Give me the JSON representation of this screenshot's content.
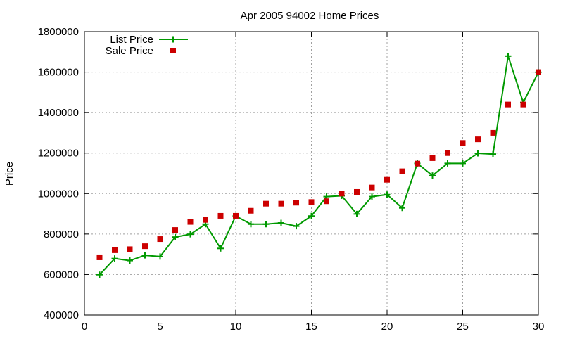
{
  "chart_data": {
    "type": "line",
    "title": "Apr 2005 94002 Home Prices",
    "xlabel": "",
    "ylabel": "Price",
    "xlim": [
      0,
      30
    ],
    "ylim": [
      400000,
      1800000
    ],
    "x_ticks": [
      0,
      5,
      10,
      15,
      20,
      25,
      30
    ],
    "y_ticks": [
      400000,
      600000,
      800000,
      1000000,
      1200000,
      1400000,
      1600000,
      1800000
    ],
    "grid": true,
    "legend_position": "top-left",
    "series": [
      {
        "name": "List Price",
        "style": "line-with-plus-markers",
        "color": "#009900",
        "x": [
          1,
          2,
          3,
          4,
          5,
          6,
          7,
          8,
          9,
          10,
          11,
          12,
          13,
          14,
          15,
          16,
          17,
          18,
          19,
          20,
          21,
          22,
          23,
          24,
          25,
          26,
          27,
          28,
          29,
          30
        ],
        "values": [
          599000,
          679000,
          669000,
          695000,
          689000,
          785000,
          799000,
          849000,
          729000,
          889000,
          849000,
          849000,
          855000,
          839000,
          889000,
          985000,
          989000,
          899000,
          985000,
          995000,
          929000,
          1149000,
          1089000,
          1149000,
          1149000,
          1199000,
          1195000,
          1679000,
          1450000,
          1599000
        ]
      },
      {
        "name": "Sale Price",
        "style": "square-markers",
        "color": "#cc0000",
        "x": [
          1,
          2,
          3,
          4,
          5,
          6,
          7,
          8,
          9,
          10,
          11,
          12,
          13,
          14,
          15,
          16,
          17,
          18,
          19,
          20,
          21,
          22,
          23,
          24,
          25,
          26,
          27,
          28,
          29,
          30
        ],
        "values": [
          685000,
          720000,
          725000,
          740000,
          775000,
          820000,
          860000,
          870000,
          890000,
          890000,
          915000,
          950000,
          950000,
          955000,
          958000,
          962000,
          1000000,
          1008000,
          1030000,
          1068000,
          1110000,
          1148000,
          1175000,
          1200000,
          1250000,
          1268000,
          1300000,
          1440000,
          1440000,
          1600000
        ]
      }
    ]
  }
}
